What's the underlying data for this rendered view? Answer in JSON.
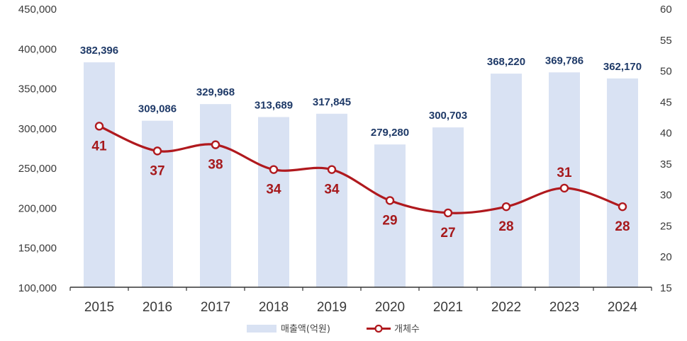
{
  "chart_data": {
    "type": "bar+line",
    "categories": [
      "2015",
      "2016",
      "2017",
      "2018",
      "2019",
      "2020",
      "2021",
      "2022",
      "2023",
      "2024"
    ],
    "series": [
      {
        "name": "매출액(억원)",
        "kind": "bar",
        "axis": "left",
        "values": [
          382396,
          309086,
          329968,
          313689,
          317845,
          279280,
          300703,
          368220,
          369786,
          362170
        ],
        "labels": [
          "382,396",
          "309,086",
          "329,968",
          "313,689",
          "317,845",
          "279,280",
          "300,703",
          "368,220",
          "369,786",
          "362,170"
        ]
      },
      {
        "name": "개체수",
        "kind": "line",
        "axis": "right",
        "values": [
          41,
          37,
          38,
          34,
          34,
          29,
          27,
          28,
          31,
          28
        ],
        "labels": [
          "41",
          "37",
          "38",
          "34",
          "34",
          "29",
          "27",
          "28",
          "31",
          "28"
        ]
      }
    ],
    "left_axis": {
      "range": [
        100000,
        450000
      ],
      "ticks": [
        100000,
        150000,
        200000,
        250000,
        300000,
        350000,
        400000,
        450000
      ],
      "tick_labels": [
        "100,000",
        "150,000",
        "200,000",
        "250,000",
        "300,000",
        "350,000",
        "400,000",
        "450,000"
      ]
    },
    "right_axis": {
      "range": [
        15,
        60
      ],
      "ticks": [
        15,
        20,
        25,
        30,
        35,
        40,
        45,
        50,
        55,
        60
      ],
      "tick_labels": [
        "15",
        "20",
        "25",
        "30",
        "35",
        "40",
        "45",
        "50",
        "55",
        "60"
      ]
    },
    "legend": {
      "placement": "bottom-center",
      "items": [
        "매출액(억원)",
        "개체수"
      ]
    },
    "grid": false,
    "colors": {
      "bar": "#d9e2f3",
      "line": "#b0191e",
      "bar_label": "#1f3a68",
      "line_label": "#a6191c",
      "axis_text": "#3a3a3a"
    }
  }
}
